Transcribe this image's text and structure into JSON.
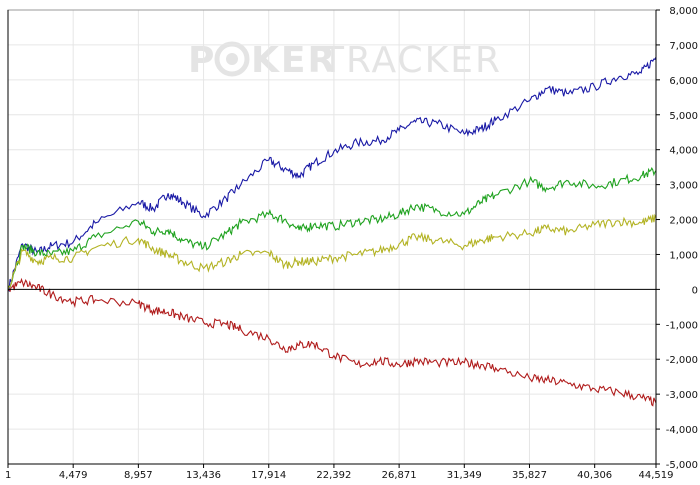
{
  "watermark": {
    "part1": "P",
    "part2": "KER",
    "part3": "TRACKER",
    "icon": "poker-chip-icon"
  },
  "colors": {
    "blue": "#1a1aa6",
    "green": "#1fa21f",
    "olive": "#b3b324",
    "red": "#b01c1c",
    "grid": "#e6e6e6",
    "axis": "#000000",
    "watermark": "#e4e4e4"
  },
  "chart_data": {
    "type": "line",
    "title": "",
    "xlabel": "",
    "ylabel": "",
    "xlim": [
      1,
      44519
    ],
    "ylim": [
      -5000,
      8000
    ],
    "grid": true,
    "legend": "none",
    "x_tick_labels": [
      "1",
      "4,479",
      "8,957",
      "13,436",
      "17,914",
      "22,392",
      "26,871",
      "31,349",
      "35,827",
      "40,306",
      "44,519"
    ],
    "y_tick_labels": [
      "8,000",
      "7,000",
      "6,000",
      "5,000",
      "4,000",
      "3,000",
      "2,000",
      "1,000",
      "0",
      "-1,000",
      "-2,000",
      "-3,000",
      "-4,000",
      "-5,000"
    ],
    "x": [
      1,
      1000,
      2000,
      3000,
      4479,
      6000,
      8957,
      10000,
      11000,
      12000,
      13436,
      15000,
      16000,
      17914,
      19000,
      20000,
      21000,
      22392,
      24000,
      25500,
      26871,
      28000,
      29500,
      31349,
      32500,
      33500,
      35827,
      37000,
      38500,
      40306,
      42000,
      43500,
      44519
    ],
    "series": [
      {
        "color": "#1a1aa6",
        "values": [
          0,
          1300,
          1050,
          1250,
          1350,
          1900,
          2500,
          2300,
          2750,
          2500,
          2100,
          2600,
          3000,
          3700,
          3450,
          3250,
          3600,
          3950,
          4200,
          4250,
          4550,
          4800,
          4750,
          4450,
          4600,
          4850,
          5400,
          5750,
          5600,
          5800,
          6100,
          6200,
          6650
        ]
      },
      {
        "color": "#1fa21f",
        "values": [
          0,
          1250,
          1050,
          1000,
          1100,
          1500,
          1950,
          1650,
          1700,
          1400,
          1200,
          1600,
          1900,
          2150,
          2000,
          1700,
          1850,
          1800,
          1950,
          2000,
          2150,
          2400,
          2250,
          2150,
          2500,
          2700,
          3100,
          2900,
          3100,
          2950,
          3100,
          3250,
          3400
        ]
      },
      {
        "color": "#b3b324",
        "values": [
          0,
          1100,
          800,
          900,
          900,
          1200,
          1450,
          1150,
          1000,
          800,
          600,
          800,
          1000,
          1050,
          700,
          800,
          800,
          900,
          1000,
          1100,
          1300,
          1500,
          1400,
          1250,
          1400,
          1500,
          1600,
          1750,
          1650,
          1850,
          1950,
          1900,
          2050
        ]
      },
      {
        "color": "#b01c1c",
        "values": [
          0,
          200,
          50,
          -150,
          -350,
          -300,
          -400,
          -600,
          -650,
          -800,
          -950,
          -1000,
          -1150,
          -1400,
          -1700,
          -1600,
          -1550,
          -1900,
          -2150,
          -2050,
          -2150,
          -2050,
          -2100,
          -2100,
          -2150,
          -2250,
          -2550,
          -2600,
          -2700,
          -2850,
          -2950,
          -3100,
          -3250
        ]
      }
    ]
  }
}
